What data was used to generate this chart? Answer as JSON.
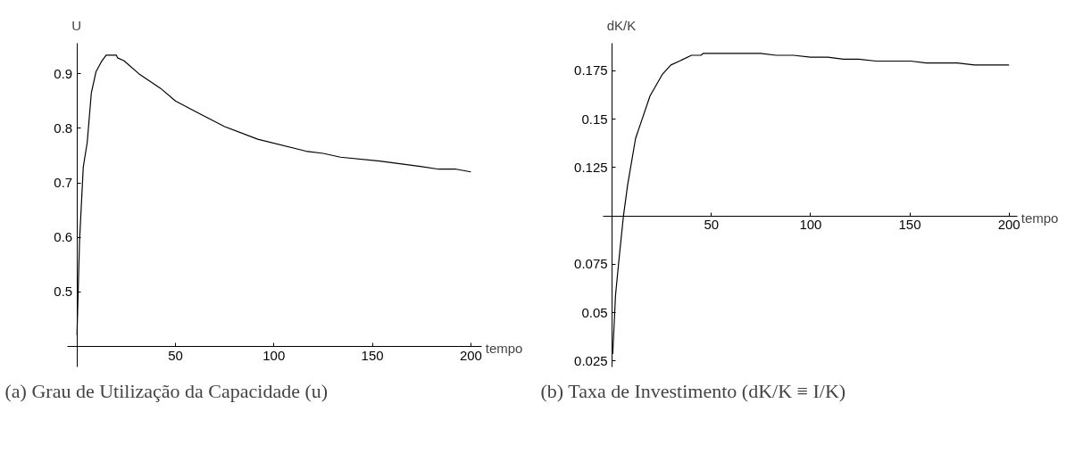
{
  "chart_data": [
    {
      "type": "line",
      "title": "(a) Grau de Utilização da Capacidade (u)",
      "xlabel": "tempo",
      "ylabel": "U",
      "x": [
        0,
        1.3,
        3.2,
        5.2,
        7.3,
        9.7,
        12.4,
        14.8,
        20,
        20.6,
        23.8,
        31.4,
        42.5,
        50,
        61.6,
        75,
        91.8,
        116.3,
        125,
        133.8,
        153.7,
        174.3,
        183.8,
        192.5,
        200
      ],
      "series": [
        {
          "color": "#000000",
          "values": [
            0.421,
            0.593,
            0.729,
            0.774,
            0.865,
            0.904,
            0.922,
            0.934,
            0.934,
            0.929,
            0.924,
            0.9,
            0.873,
            0.85,
            0.828,
            0.803,
            0.78,
            0.758,
            0.754,
            0.747,
            0.74,
            0.73,
            0.725,
            0.725,
            0.72
          ]
        }
      ],
      "xlim": [
        -5,
        205.6
      ],
      "ylim": [
        0.363,
        0.955
      ],
      "xticks": [
        50,
        100,
        150,
        200
      ],
      "yticks": [
        0.5,
        0.6,
        0.7,
        0.8,
        0.9
      ],
      "grid": false,
      "marker": "none",
      "line_style": "solid"
    },
    {
      "type": "line",
      "title": "(b) Taxa de Investimento (dK/K ≡ I/K)",
      "xlabel": "tempo",
      "ylabel": "dK/K",
      "x": [
        0.3,
        1.7,
        3.5,
        5.7,
        7.8,
        11.8,
        15.1,
        19.1,
        25.2,
        29.6,
        33.9,
        40,
        44.7,
        46,
        74.8,
        82.6,
        91.3,
        100,
        108.7,
        116.5,
        124.3,
        133,
        150.4,
        158.3,
        173.9,
        182.6,
        200
      ],
      "series": [
        {
          "color": "#000000",
          "values": [
            0.0286,
            0.059,
            0.078,
            0.1,
            0.116,
            0.14,
            0.15,
            0.162,
            0.173,
            0.178,
            0.18,
            0.183,
            0.183,
            0.184,
            0.184,
            0.183,
            0.183,
            0.182,
            0.182,
            0.181,
            0.181,
            0.18,
            0.18,
            0.179,
            0.179,
            0.178,
            0.178
          ]
        }
      ],
      "xlim": [
        -4.7,
        204.3
      ],
      "ylim": [
        0.022,
        0.189
      ],
      "xticks": [
        50,
        100,
        150,
        200
      ],
      "yticks": [
        0.025,
        0.05,
        0.075,
        0.125,
        0.15,
        0.175
      ],
      "grid": false,
      "marker": "none",
      "line_style": "solid"
    }
  ]
}
